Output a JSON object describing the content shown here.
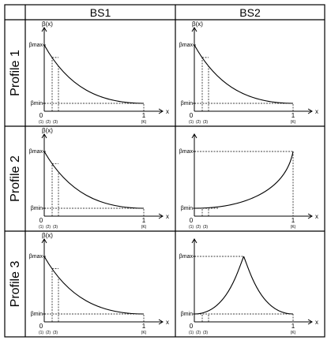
{
  "columns": [
    "BS1",
    "BS2"
  ],
  "rows": [
    "Profile 1",
    "Profile 2",
    "Profile 3"
  ],
  "labels": {
    "y_axis": "β(x)",
    "x_axis": "x",
    "beta_max": "βmax",
    "beta_min": "βmin",
    "zero": "0",
    "one": "1",
    "ticks": [
      "(1)",
      "(2)",
      "(3)"
    ],
    "k_tick": "(K)"
  },
  "panels": [
    {
      "row": 0,
      "col": 0,
      "shape": "decreasing",
      "show_ylabel": true
    },
    {
      "row": 0,
      "col": 1,
      "shape": "decreasing",
      "show_ylabel": true
    },
    {
      "row": 1,
      "col": 0,
      "shape": "decreasing",
      "show_ylabel": true
    },
    {
      "row": 1,
      "col": 1,
      "shape": "u",
      "show_ylabel": false
    },
    {
      "row": 2,
      "col": 0,
      "shape": "decreasing",
      "show_ylabel": true
    },
    {
      "row": 2,
      "col": 1,
      "shape": "peak",
      "show_ylabel": false
    }
  ]
}
